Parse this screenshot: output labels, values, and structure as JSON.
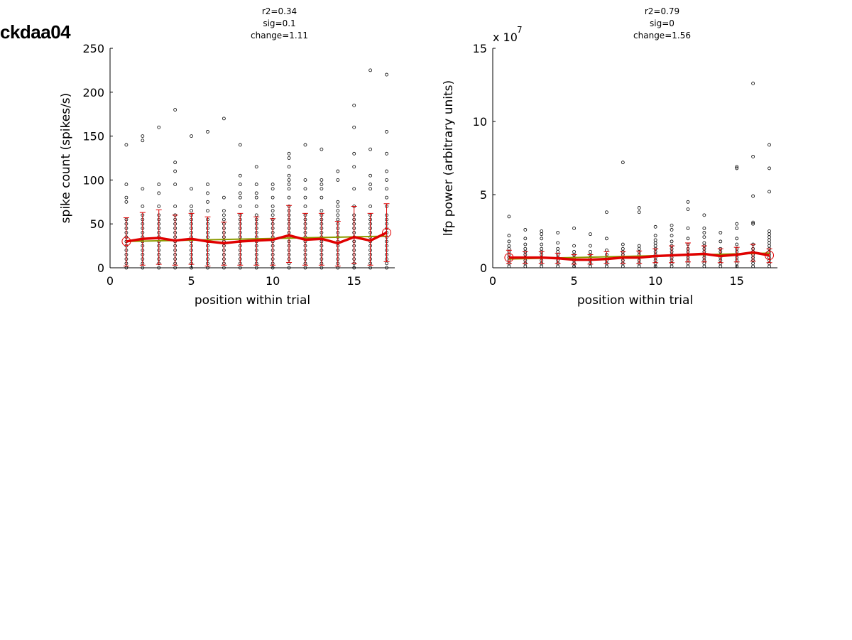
{
  "figure_id": "ckdaa04",
  "chart_data": [
    {
      "type": "scatter",
      "title_lines": [
        "r2=0.34",
        "sig=0.1",
        "change=1.11"
      ],
      "xlabel": "position within trial",
      "ylabel": "spike count (spikes/s)",
      "exponent_label": "",
      "xlim": [
        0,
        17.5
      ],
      "ylim": [
        0,
        250
      ],
      "xticks": [
        0,
        5,
        10,
        15
      ],
      "yticks": [
        0,
        50,
        100,
        150,
        200,
        250
      ],
      "ytick_labels": [
        "0",
        "50",
        "100",
        "150",
        "200",
        "250"
      ],
      "grid": false,
      "points": [
        {
          "x": 1,
          "ys": [
            0,
            5,
            10,
            15,
            20,
            25,
            30,
            35,
            40,
            45,
            50,
            55,
            75,
            80,
            95,
            140
          ]
        },
        {
          "x": 2,
          "ys": [
            0,
            5,
            10,
            15,
            20,
            25,
            30,
            35,
            40,
            45,
            50,
            55,
            60,
            70,
            90,
            145,
            150
          ]
        },
        {
          "x": 3,
          "ys": [
            0,
            5,
            10,
            15,
            20,
            25,
            30,
            35,
            40,
            45,
            50,
            55,
            60,
            70,
            85,
            95,
            160
          ]
        },
        {
          "x": 4,
          "ys": [
            0,
            5,
            10,
            15,
            20,
            25,
            30,
            35,
            40,
            45,
            50,
            55,
            60,
            70,
            95,
            110,
            120,
            180
          ]
        },
        {
          "x": 5,
          "ys": [
            0,
            5,
            10,
            15,
            20,
            25,
            30,
            35,
            40,
            45,
            50,
            55,
            60,
            65,
            70,
            90,
            150
          ]
        },
        {
          "x": 6,
          "ys": [
            0,
            5,
            10,
            15,
            20,
            25,
            30,
            35,
            40,
            45,
            50,
            55,
            65,
            75,
            85,
            95,
            155
          ]
        },
        {
          "x": 7,
          "ys": [
            0,
            5,
            10,
            15,
            20,
            25,
            30,
            35,
            40,
            45,
            50,
            55,
            60,
            65,
            80,
            170
          ]
        },
        {
          "x": 8,
          "ys": [
            0,
            5,
            10,
            15,
            20,
            25,
            30,
            35,
            40,
            45,
            50,
            55,
            60,
            70,
            80,
            85,
            95,
            105,
            140
          ]
        },
        {
          "x": 9,
          "ys": [
            0,
            5,
            10,
            15,
            20,
            25,
            30,
            35,
            40,
            45,
            50,
            55,
            60,
            70,
            80,
            85,
            95,
            115
          ]
        },
        {
          "x": 10,
          "ys": [
            0,
            5,
            10,
            15,
            20,
            25,
            30,
            35,
            40,
            45,
            50,
            55,
            60,
            65,
            70,
            80,
            90,
            95
          ]
        },
        {
          "x": 11,
          "ys": [
            0,
            5,
            10,
            15,
            20,
            25,
            30,
            35,
            40,
            45,
            50,
            55,
            60,
            65,
            70,
            80,
            90,
            95,
            100,
            105,
            115,
            125,
            130
          ]
        },
        {
          "x": 12,
          "ys": [
            0,
            5,
            10,
            15,
            20,
            25,
            30,
            35,
            40,
            45,
            50,
            55,
            60,
            70,
            80,
            90,
            100,
            140
          ]
        },
        {
          "x": 13,
          "ys": [
            0,
            5,
            10,
            15,
            20,
            25,
            30,
            35,
            40,
            45,
            50,
            55,
            60,
            65,
            80,
            90,
            95,
            100,
            135
          ]
        },
        {
          "x": 14,
          "ys": [
            0,
            5,
            10,
            15,
            20,
            25,
            30,
            35,
            40,
            45,
            50,
            55,
            60,
            65,
            70,
            75,
            100,
            110
          ]
        },
        {
          "x": 15,
          "ys": [
            0,
            5,
            10,
            15,
            20,
            25,
            30,
            35,
            40,
            45,
            50,
            55,
            60,
            70,
            90,
            115,
            130,
            160,
            185
          ]
        },
        {
          "x": 16,
          "ys": [
            0,
            5,
            10,
            15,
            20,
            25,
            30,
            35,
            40,
            45,
            50,
            55,
            60,
            70,
            90,
            95,
            105,
            135,
            225
          ]
        },
        {
          "x": 17,
          "ys": [
            0,
            5,
            10,
            15,
            20,
            25,
            30,
            35,
            40,
            45,
            50,
            55,
            60,
            70,
            80,
            90,
            100,
            110,
            130,
            155,
            220
          ]
        }
      ],
      "mean_line": {
        "x": [
          1,
          2,
          3,
          4,
          5,
          6,
          7,
          8,
          9,
          10,
          11,
          12,
          13,
          14,
          15,
          16,
          17
        ],
        "y": [
          30,
          33,
          34,
          31,
          33,
          30,
          28,
          30,
          31,
          32,
          37,
          32,
          33,
          28,
          35,
          31,
          40
        ],
        "color": "#e00000"
      },
      "error_bars": {
        "x": [
          1,
          2,
          3,
          4,
          5,
          6,
          7,
          8,
          9,
          10,
          11,
          12,
          13,
          14,
          15,
          16,
          17
        ],
        "lower": [
          2,
          3,
          4,
          3,
          4,
          2,
          3,
          3,
          3,
          3,
          6,
          3,
          3,
          2,
          5,
          3,
          7
        ],
        "upper": [
          57,
          63,
          66,
          60,
          62,
          58,
          52,
          62,
          58,
          56,
          71,
          62,
          62,
          53,
          70,
          62,
          73
        ],
        "color": "#e00000"
      },
      "fit_line": {
        "x": [
          1,
          17
        ],
        "y": [
          30,
          36
        ],
        "color": "#8b9a00"
      },
      "endpoint_markers": [
        {
          "x": 1,
          "y": 30
        },
        {
          "x": 17,
          "y": 40
        }
      ]
    },
    {
      "type": "scatter",
      "title_lines": [
        "r2=0.79",
        "sig=0",
        "change=1.56"
      ],
      "xlabel": "position within trial",
      "ylabel": "lfp power (arbitrary units)",
      "exponent_label": "x 10",
      "exponent_power": "7",
      "xlim": [
        0,
        17.5
      ],
      "ylim": [
        0,
        150000000
      ],
      "xticks": [
        0,
        5,
        10,
        15
      ],
      "yticks": [
        0,
        50000000,
        100000000,
        150000000
      ],
      "ytick_labels": [
        "0",
        "5",
        "10",
        "15"
      ],
      "grid": false,
      "points": [
        {
          "x": 1,
          "ys": [
            1000000,
            3000000,
            5000000,
            7000000,
            9000000,
            11000000,
            13000000,
            15000000,
            18000000,
            22000000,
            35000000
          ]
        },
        {
          "x": 2,
          "ys": [
            1000000,
            3000000,
            5000000,
            7000000,
            9000000,
            11000000,
            13000000,
            16000000,
            20000000,
            26000000
          ]
        },
        {
          "x": 3,
          "ys": [
            1000000,
            3000000,
            5000000,
            7000000,
            9000000,
            11000000,
            13000000,
            16000000,
            20000000,
            23000000,
            25000000
          ]
        },
        {
          "x": 4,
          "ys": [
            1000000,
            3000000,
            5000000,
            7000000,
            9000000,
            11000000,
            13000000,
            17000000,
            24000000
          ]
        },
        {
          "x": 5,
          "ys": [
            1000000,
            3000000,
            5000000,
            7000000,
            9000000,
            11000000,
            15000000,
            27000000
          ]
        },
        {
          "x": 6,
          "ys": [
            1000000,
            3000000,
            5000000,
            7000000,
            9000000,
            11000000,
            15000000,
            23000000
          ]
        },
        {
          "x": 7,
          "ys": [
            1000000,
            3000000,
            5000000,
            7000000,
            9000000,
            12000000,
            20000000,
            38000000
          ]
        },
        {
          "x": 8,
          "ys": [
            1000000,
            3000000,
            5000000,
            7000000,
            9000000,
            11000000,
            13000000,
            16000000,
            72000000
          ]
        },
        {
          "x": 9,
          "ys": [
            1000000,
            3000000,
            5000000,
            7000000,
            9000000,
            11000000,
            13000000,
            15000000,
            38000000,
            41000000
          ]
        },
        {
          "x": 10,
          "ys": [
            1000000,
            3000000,
            5000000,
            7000000,
            9000000,
            11000000,
            13000000,
            15000000,
            17000000,
            19000000,
            22000000,
            28000000
          ]
        },
        {
          "x": 11,
          "ys": [
            1000000,
            3000000,
            5000000,
            7000000,
            9000000,
            11000000,
            13000000,
            15000000,
            18000000,
            22000000,
            26000000,
            29000000
          ]
        },
        {
          "x": 12,
          "ys": [
            1000000,
            3000000,
            5000000,
            7000000,
            9000000,
            11000000,
            13000000,
            16000000,
            20000000,
            27000000,
            40000000,
            45000000
          ]
        },
        {
          "x": 13,
          "ys": [
            1000000,
            3000000,
            5000000,
            7000000,
            9000000,
            11000000,
            13000000,
            15000000,
            17000000,
            21000000,
            24000000,
            27000000,
            36000000
          ]
        },
        {
          "x": 14,
          "ys": [
            1000000,
            3000000,
            5000000,
            7000000,
            9000000,
            11000000,
            13000000,
            18000000,
            24000000
          ]
        },
        {
          "x": 15,
          "ys": [
            1000000,
            3000000,
            5000000,
            7000000,
            9000000,
            11000000,
            13000000,
            16000000,
            20000000,
            27000000,
            30000000,
            68000000,
            69000000
          ]
        },
        {
          "x": 16,
          "ys": [
            1000000,
            3000000,
            5000000,
            7000000,
            9000000,
            11000000,
            13000000,
            16000000,
            30000000,
            31000000,
            49000000,
            76000000,
            126000000
          ]
        },
        {
          "x": 17,
          "ys": [
            1000000,
            3000000,
            5000000,
            7000000,
            9000000,
            11000000,
            13000000,
            15000000,
            17000000,
            19000000,
            21000000,
            23000000,
            25000000,
            52000000,
            68000000,
            84000000
          ]
        }
      ],
      "mean_line": {
        "x": [
          1,
          2,
          3,
          4,
          5,
          6,
          7,
          8,
          9,
          10,
          11,
          12,
          13,
          14,
          15,
          16,
          17
        ],
        "y": [
          7000000,
          7000000,
          7000000,
          6500000,
          5500000,
          5500000,
          6000000,
          7000000,
          7000000,
          8000000,
          8500000,
          9000000,
          9500000,
          8000000,
          9000000,
          10500000,
          8500000
        ],
        "color": "#e00000"
      },
      "error_bars": {
        "x": [
          1,
          2,
          3,
          4,
          5,
          6,
          7,
          8,
          9,
          10,
          11,
          12,
          13,
          14,
          15,
          16,
          17
        ],
        "lower": [
          3000000,
          3000000,
          3000000,
          3000000,
          2500000,
          2500000,
          3000000,
          3000000,
          3000000,
          3500000,
          3500000,
          4000000,
          4000000,
          3500000,
          4000000,
          4500000,
          3500000
        ],
        "upper": [
          12000000,
          11000000,
          11000000,
          10000000,
          9000000,
          9000000,
          11000000,
          11000000,
          11500000,
          13000000,
          15000000,
          17000000,
          15000000,
          13000000,
          14000000,
          16000000,
          13000000
        ],
        "color": "#e00000"
      },
      "fit_line": {
        "x": [
          1,
          17
        ],
        "y": [
          6000000,
          10000000
        ],
        "color": "#8b9a00"
      },
      "endpoint_markers": [
        {
          "x": 1,
          "y": 7000000
        },
        {
          "x": 17,
          "y": 8500000
        }
      ]
    }
  ]
}
